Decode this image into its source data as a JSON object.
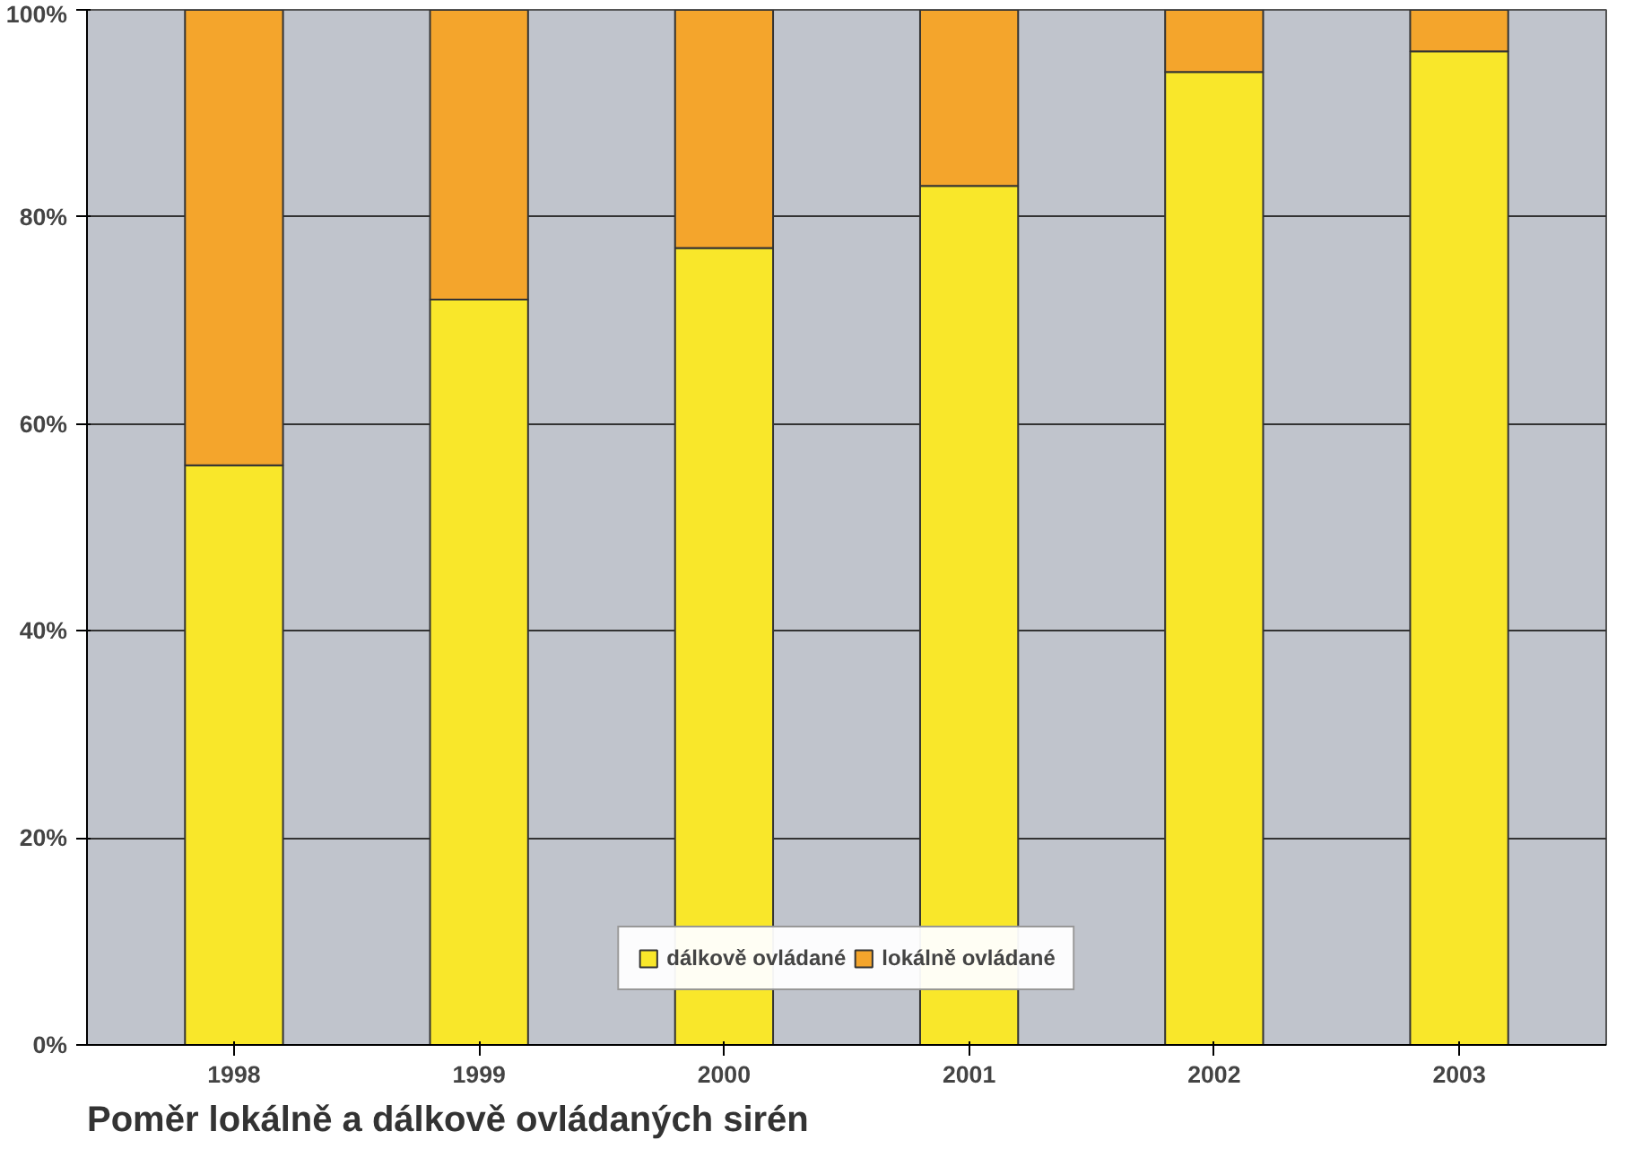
{
  "chart_data": {
    "type": "bar",
    "stacked": true,
    "title": "Poměr lokálně a dálkově ovládaných sirén",
    "categories": [
      "1998",
      "1999",
      "2000",
      "2001",
      "2002",
      "2003"
    ],
    "series": [
      {
        "name": "dálkově ovládané",
        "color": "#f9e72a",
        "values": [
          56,
          72,
          77,
          83,
          94,
          96
        ]
      },
      {
        "name": "lokálně ovládané",
        "color": "#f4a52c",
        "values": [
          44,
          28,
          23,
          17,
          6,
          4
        ]
      }
    ],
    "ylim": [
      0,
      100
    ],
    "yticks": [
      {
        "value": 0,
        "label": "0%"
      },
      {
        "value": 20,
        "label": "20%"
      },
      {
        "value": 40,
        "label": "40%"
      },
      {
        "value": 60,
        "label": "60%"
      },
      {
        "value": 80,
        "label": "80%"
      },
      {
        "value": 100,
        "label": "100%"
      }
    ],
    "grid": "y",
    "legend": "bottom"
  }
}
